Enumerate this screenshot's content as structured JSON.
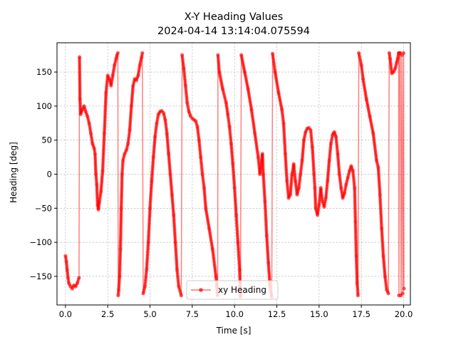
{
  "chart_data": {
    "type": "line",
    "title": "X-Y Heading Values",
    "subtitle": "2024-04-14 13:14:04.075594",
    "xlabel": "Time [s]",
    "ylabel": "Heading [deg]",
    "xlim": [
      -0.5,
      20.4
    ],
    "ylim": [
      -192,
      193
    ],
    "xticks": [
      0.0,
      2.5,
      5.0,
      7.5,
      10.0,
      12.5,
      15.0,
      17.5,
      20.0
    ],
    "xtick_labels": [
      "0.0",
      "2.5",
      "5.0",
      "7.5",
      "10.0",
      "12.5",
      "15.0",
      "17.5",
      "20.0"
    ],
    "yticks": [
      -150,
      -100,
      -50,
      0,
      50,
      100,
      150
    ],
    "ytick_labels": [
      "−150",
      "−100",
      "−50",
      "0",
      "50",
      "100",
      "150"
    ],
    "grid": true,
    "legend_position": "lower center",
    "series": [
      {
        "name": "xy Heading",
        "color": "#ff0000",
        "marker": "circle",
        "points": [
          [
            0.0,
            -120
          ],
          [
            0.05,
            -128
          ],
          [
            0.1,
            -140
          ],
          [
            0.15,
            -152
          ],
          [
            0.2,
            -160
          ],
          [
            0.3,
            -165
          ],
          [
            0.4,
            -168
          ],
          [
            0.5,
            -163
          ],
          [
            0.6,
            -165
          ],
          [
            0.7,
            -160
          ],
          [
            0.8,
            -152
          ],
          [
            0.83,
            172
          ],
          [
            0.86,
            110
          ],
          [
            0.9,
            88
          ],
          [
            1.0,
            95
          ],
          [
            1.1,
            100
          ],
          [
            1.2,
            92
          ],
          [
            1.3,
            85
          ],
          [
            1.4,
            75
          ],
          [
            1.5,
            60
          ],
          [
            1.6,
            45
          ],
          [
            1.7,
            38
          ],
          [
            1.75,
            30
          ],
          [
            1.8,
            0
          ],
          [
            1.85,
            -15
          ],
          [
            1.9,
            -45
          ],
          [
            1.95,
            -52
          ],
          [
            2.0,
            -42
          ],
          [
            2.1,
            -25
          ],
          [
            2.2,
            5
          ],
          [
            2.3,
            60
          ],
          [
            2.4,
            120
          ],
          [
            2.5,
            145
          ],
          [
            2.6,
            140
          ],
          [
            2.7,
            130
          ],
          [
            2.8,
            145
          ],
          [
            2.9,
            160
          ],
          [
            3.0,
            170
          ],
          [
            3.05,
            175
          ],
          [
            3.1,
            178
          ],
          [
            3.12,
            -178
          ],
          [
            3.15,
            -170
          ],
          [
            3.2,
            -150
          ],
          [
            3.25,
            -110
          ],
          [
            3.3,
            -50
          ],
          [
            3.35,
            0
          ],
          [
            3.4,
            20
          ],
          [
            3.5,
            30
          ],
          [
            3.6,
            35
          ],
          [
            3.7,
            45
          ],
          [
            3.8,
            65
          ],
          [
            3.9,
            100
          ],
          [
            4.0,
            130
          ],
          [
            4.1,
            140
          ],
          [
            4.2,
            138
          ],
          [
            4.3,
            145
          ],
          [
            4.4,
            160
          ],
          [
            4.5,
            172
          ],
          [
            4.55,
            178
          ],
          [
            4.6,
            -175
          ],
          [
            4.7,
            -165
          ],
          [
            4.8,
            -140
          ],
          [
            4.9,
            -100
          ],
          [
            5.0,
            -50
          ],
          [
            5.1,
            -10
          ],
          [
            5.2,
            25
          ],
          [
            5.3,
            55
          ],
          [
            5.4,
            75
          ],
          [
            5.5,
            88
          ],
          [
            5.6,
            92
          ],
          [
            5.7,
            93
          ],
          [
            5.8,
            90
          ],
          [
            5.9,
            80
          ],
          [
            6.0,
            60
          ],
          [
            6.1,
            30
          ],
          [
            6.2,
            0
          ],
          [
            6.3,
            -30
          ],
          [
            6.4,
            -60
          ],
          [
            6.5,
            -100
          ],
          [
            6.6,
            -140
          ],
          [
            6.7,
            -165
          ],
          [
            6.85,
            -178
          ],
          [
            6.9,
            175
          ],
          [
            7.0,
            155
          ],
          [
            7.1,
            130
          ],
          [
            7.2,
            105
          ],
          [
            7.3,
            92
          ],
          [
            7.4,
            85
          ],
          [
            7.5,
            82
          ],
          [
            7.6,
            80
          ],
          [
            7.7,
            78
          ],
          [
            7.8,
            70
          ],
          [
            7.9,
            50
          ],
          [
            8.0,
            25
          ],
          [
            8.1,
            0
          ],
          [
            8.2,
            -20
          ],
          [
            8.3,
            -50
          ],
          [
            8.5,
            -80
          ],
          [
            8.7,
            -110
          ],
          [
            8.9,
            -150
          ],
          [
            9.0,
            -178
          ],
          [
            9.02,
            175
          ],
          [
            9.1,
            150
          ],
          [
            9.3,
            125
          ],
          [
            9.5,
            105
          ],
          [
            9.6,
            88
          ],
          [
            9.7,
            70
          ],
          [
            9.8,
            45
          ],
          [
            9.9,
            15
          ],
          [
            10.0,
            -20
          ],
          [
            10.1,
            -60
          ],
          [
            10.2,
            -100
          ],
          [
            10.3,
            -140
          ],
          [
            10.35,
            -180
          ],
          [
            10.4,
            175
          ],
          [
            10.6,
            150
          ],
          [
            10.8,
            125
          ],
          [
            11.0,
            95
          ],
          [
            11.2,
            60
          ],
          [
            11.4,
            25
          ],
          [
            11.5,
            0
          ],
          [
            11.6,
            20
          ],
          [
            11.65,
            30
          ],
          [
            11.7,
            0
          ],
          [
            11.8,
            -40
          ],
          [
            11.9,
            -90
          ],
          [
            12.0,
            -130
          ],
          [
            12.1,
            -165
          ],
          [
            12.2,
            -180
          ],
          [
            12.25,
            177
          ],
          [
            12.4,
            150
          ],
          [
            12.6,
            120
          ],
          [
            12.8,
            95
          ],
          [
            12.9,
            75
          ],
          [
            13.0,
            30
          ],
          [
            13.1,
            -10
          ],
          [
            13.2,
            -35
          ],
          [
            13.3,
            -30
          ],
          [
            13.4,
            0
          ],
          [
            13.5,
            15
          ],
          [
            13.6,
            -10
          ],
          [
            13.7,
            -30
          ],
          [
            13.8,
            -20
          ],
          [
            13.9,
            0
          ],
          [
            14.0,
            20
          ],
          [
            14.1,
            50
          ],
          [
            14.2,
            62
          ],
          [
            14.3,
            67
          ],
          [
            14.4,
            68
          ],
          [
            14.5,
            65
          ],
          [
            14.6,
            40
          ],
          [
            14.7,
            0
          ],
          [
            14.75,
            -20
          ],
          [
            14.8,
            -50
          ],
          [
            14.9,
            -60
          ],
          [
            15.0,
            -45
          ],
          [
            15.1,
            -20
          ],
          [
            15.2,
            -40
          ],
          [
            15.3,
            -48
          ],
          [
            15.4,
            -35
          ],
          [
            15.5,
            -10
          ],
          [
            15.6,
            20
          ],
          [
            15.7,
            45
          ],
          [
            15.8,
            58
          ],
          [
            15.9,
            62
          ],
          [
            16.0,
            55
          ],
          [
            16.1,
            30
          ],
          [
            16.2,
            0
          ],
          [
            16.3,
            -20
          ],
          [
            16.4,
            -35
          ],
          [
            16.5,
            -28
          ],
          [
            16.6,
            -15
          ],
          [
            16.7,
            -5
          ],
          [
            16.8,
            5
          ],
          [
            16.9,
            12
          ],
          [
            17.0,
            5
          ],
          [
            17.1,
            -20
          ],
          [
            17.15,
            -70
          ],
          [
            17.2,
            -120
          ],
          [
            17.25,
            -160
          ],
          [
            17.3,
            -178
          ],
          [
            17.35,
            178
          ],
          [
            17.5,
            160
          ],
          [
            17.6,
            140
          ],
          [
            17.8,
            110
          ],
          [
            18.0,
            85
          ],
          [
            18.2,
            60
          ],
          [
            18.4,
            20
          ],
          [
            18.5,
            10
          ],
          [
            18.6,
            -30
          ],
          [
            18.7,
            -80
          ],
          [
            18.8,
            -120
          ],
          [
            18.9,
            -150
          ],
          [
            19.0,
            -170
          ],
          [
            19.1,
            -175
          ],
          [
            19.15,
            178
          ],
          [
            19.2,
            170
          ],
          [
            19.3,
            148
          ],
          [
            19.4,
            150
          ],
          [
            19.5,
            155
          ],
          [
            19.6,
            165
          ],
          [
            19.65,
            170
          ],
          [
            19.7,
            178
          ],
          [
            19.72,
            -178
          ],
          [
            19.75,
            178
          ],
          [
            19.8,
            178
          ],
          [
            19.85,
            -178
          ],
          [
            19.9,
            175
          ],
          [
            19.95,
            -175
          ],
          [
            20.0,
            178
          ],
          [
            20.02,
            -168
          ]
        ]
      }
    ]
  }
}
